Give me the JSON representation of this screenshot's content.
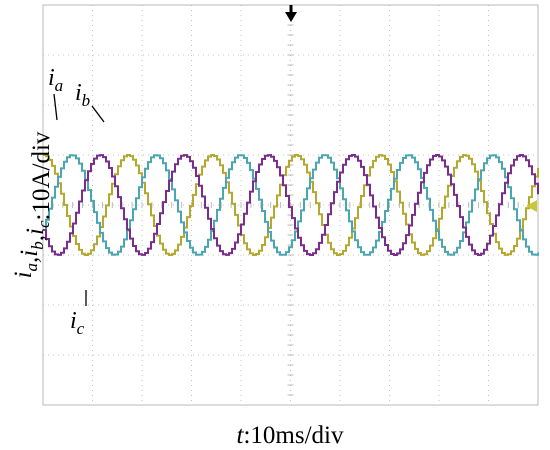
{
  "chart_data": {
    "type": "line",
    "title": "",
    "xlabel": {
      "italic": "t",
      "rest": ":10ms/div"
    },
    "ylabel": {
      "parts": [
        {
          "text": "i",
          "sub": "a"
        },
        {
          "text": ",i",
          "sub": "b"
        },
        {
          "text": ",i",
          "sub": "c"
        },
        {
          "text": ":10A/div",
          "sub": ""
        }
      ]
    },
    "x_divisions": 10,
    "y_divisions": 8,
    "xlim_div": [
      0,
      10
    ],
    "ylim_div": [
      -4,
      4
    ],
    "grid": true,
    "period_div": 1.7,
    "amplitude_div": 1.0,
    "series": [
      {
        "name": "a",
        "color": "#b5a82e",
        "phase_deg": 0
      },
      {
        "name": "b",
        "color": "#4aa6b0",
        "phase_deg": -120
      },
      {
        "name": "c",
        "color": "#7a2d8c",
        "phase_deg": 120
      }
    ],
    "annotations": [
      {
        "series": "a",
        "text": "i",
        "sub": "a"
      },
      {
        "series": "b",
        "text": "i",
        "sub": "b"
      },
      {
        "series": "c",
        "text": "i",
        "sub": "c"
      }
    ],
    "trigger_marker_color": "#000000",
    "level_marker_color": "#c9c63a"
  }
}
